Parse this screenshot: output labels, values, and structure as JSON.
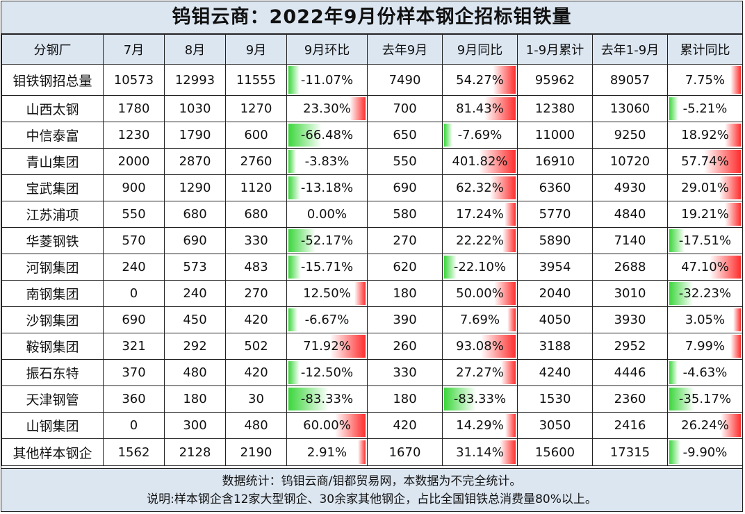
{
  "title": "钨钼云商：2022年9月份样本钢企招标钼铁量",
  "headers": [
    "分钢厂",
    "7月",
    "8月",
    "9月",
    "9月环比",
    "去年9月",
    "9月同比",
    "1-9月累计",
    "去年1-9月",
    "累计同比"
  ],
  "rows": [
    {
      "name": "钼铁钢招总量",
      "jul": "10573",
      "aug": "12993",
      "sep": "11555",
      "mom": "-11.07%",
      "mom_v": -11.07,
      "ly_sep": "7490",
      "yoy": "54.27%",
      "yoy_v": 54.27,
      "ytd": "95962",
      "ly_ytd": "89057",
      "cum": "7.75%",
      "cum_v": 7.75
    },
    {
      "name": "山西太钢",
      "jul": "1780",
      "aug": "1030",
      "sep": "1270",
      "mom": "23.30%",
      "mom_v": 23.3,
      "ly_sep": "700",
      "yoy": "81.43%",
      "yoy_v": 81.43,
      "ytd": "12380",
      "ly_ytd": "13060",
      "cum": "-5.21%",
      "cum_v": -5.21
    },
    {
      "name": "中信泰富",
      "jul": "1230",
      "aug": "1790",
      "sep": "600",
      "mom": "-66.48%",
      "mom_v": -66.48,
      "ly_sep": "650",
      "yoy": "-7.69%",
      "yoy_v": -7.69,
      "ytd": "11000",
      "ly_ytd": "9250",
      "cum": "18.92%",
      "cum_v": 18.92
    },
    {
      "name": "青山集团",
      "jul": "2000",
      "aug": "2870",
      "sep": "2760",
      "mom": "-3.83%",
      "mom_v": -3.83,
      "ly_sep": "550",
      "yoy": "401.82%",
      "yoy_v": 401.82,
      "ytd": "16910",
      "ly_ytd": "10720",
      "cum": "57.74%",
      "cum_v": 57.74
    },
    {
      "name": "宝武集团",
      "jul": "900",
      "aug": "1290",
      "sep": "1120",
      "mom": "-13.18%",
      "mom_v": -13.18,
      "ly_sep": "690",
      "yoy": "62.32%",
      "yoy_v": 62.32,
      "ytd": "6360",
      "ly_ytd": "4930",
      "cum": "29.01%",
      "cum_v": 29.01
    },
    {
      "name": "江苏浦项",
      "jul": "550",
      "aug": "680",
      "sep": "680",
      "mom": "0.00%",
      "mom_v": 0,
      "ly_sep": "580",
      "yoy": "17.24%",
      "yoy_v": 17.24,
      "ytd": "5770",
      "ly_ytd": "4840",
      "cum": "19.21%",
      "cum_v": 19.21
    },
    {
      "name": "华菱钢铁",
      "jul": "570",
      "aug": "690",
      "sep": "330",
      "mom": "-52.17%",
      "mom_v": -52.17,
      "ly_sep": "270",
      "yoy": "22.22%",
      "yoy_v": 22.22,
      "ytd": "5890",
      "ly_ytd": "7140",
      "cum": "-17.51%",
      "cum_v": -17.51
    },
    {
      "name": "河钢集团",
      "jul": "240",
      "aug": "573",
      "sep": "483",
      "mom": "-15.71%",
      "mom_v": -15.71,
      "ly_sep": "620",
      "yoy": "-22.10%",
      "yoy_v": -22.1,
      "ytd": "3954",
      "ly_ytd": "2688",
      "cum": "47.10%",
      "cum_v": 47.1
    },
    {
      "name": "南钢集团",
      "jul": "0",
      "aug": "240",
      "sep": "270",
      "mom": "12.50%",
      "mom_v": 12.5,
      "ly_sep": "180",
      "yoy": "50.00%",
      "yoy_v": 50.0,
      "ytd": "2040",
      "ly_ytd": "3010",
      "cum": "-32.23%",
      "cum_v": -32.23
    },
    {
      "name": "沙钢集团",
      "jul": "690",
      "aug": "450",
      "sep": "420",
      "mom": "-6.67%",
      "mom_v": -6.67,
      "ly_sep": "390",
      "yoy": "7.69%",
      "yoy_v": 7.69,
      "ytd": "4050",
      "ly_ytd": "3930",
      "cum": "3.05%",
      "cum_v": 3.05
    },
    {
      "name": "鞍钢集团",
      "jul": "321",
      "aug": "292",
      "sep": "502",
      "mom": "71.92%",
      "mom_v": 71.92,
      "ly_sep": "260",
      "yoy": "93.08%",
      "yoy_v": 93.08,
      "ytd": "3188",
      "ly_ytd": "2952",
      "cum": "7.99%",
      "cum_v": 7.99
    },
    {
      "name": "振石东特",
      "jul": "370",
      "aug": "480",
      "sep": "420",
      "mom": "-12.50%",
      "mom_v": -12.5,
      "ly_sep": "330",
      "yoy": "27.27%",
      "yoy_v": 27.27,
      "ytd": "4240",
      "ly_ytd": "4446",
      "cum": "-4.63%",
      "cum_v": -4.63
    },
    {
      "name": "天津钢管",
      "jul": "360",
      "aug": "180",
      "sep": "30",
      "mom": "-83.33%",
      "mom_v": -83.33,
      "ly_sep": "180",
      "yoy": "-83.33%",
      "yoy_v": -83.33,
      "ytd": "1530",
      "ly_ytd": "2360",
      "cum": "-35.17%",
      "cum_v": -35.17
    },
    {
      "name": "山钢集团",
      "jul": "0",
      "aug": "300",
      "sep": "480",
      "mom": "60.00%",
      "mom_v": 60.0,
      "ly_sep": "420",
      "yoy": "14.29%",
      "yoy_v": 14.29,
      "ytd": "3050",
      "ly_ytd": "2416",
      "cum": "26.24%",
      "cum_v": 26.24
    },
    {
      "name": "其他样本钢企",
      "jul": "1562",
      "aug": "2128",
      "sep": "2190",
      "mom": "2.91%",
      "mom_v": 2.91,
      "ly_sep": "1670",
      "yoy": "31.14%",
      "yoy_v": 31.14,
      "ytd": "15600",
      "ly_ytd": "17315",
      "cum": "-9.90%",
      "cum_v": -9.9
    }
  ],
  "footer": {
    "line1": "数据统计：钨钼云商/钼都贸易网，本数据为不完全统计。",
    "line2": "说明:样本钢企含12家大型钢企、30余家其他钢企，占比全国钼铁总消费量80%以上。"
  },
  "colors": {
    "header_bg": "#dce6f1",
    "positive_bar": "#ff2d2d",
    "negative_bar": "#3bd63b"
  }
}
